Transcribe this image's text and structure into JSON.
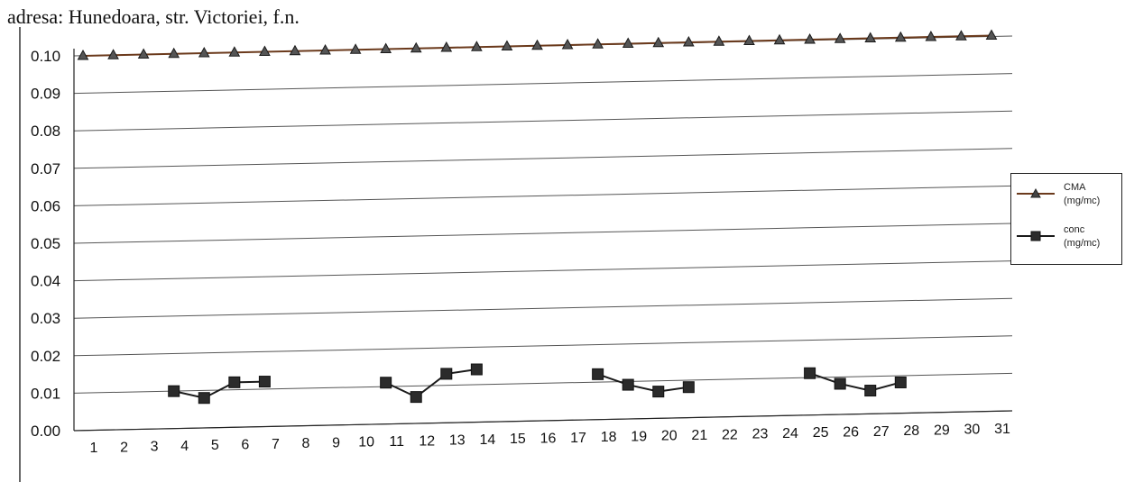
{
  "chart_data": {
    "type": "line",
    "title": "adresa: Hunedoara, str. Victoriei, f.n.",
    "xlabel": "",
    "ylabel": "",
    "categories": [
      "1",
      "2",
      "3",
      "4",
      "5",
      "6",
      "7",
      "8",
      "9",
      "10",
      "11",
      "12",
      "13",
      "14",
      "15",
      "16",
      "17",
      "18",
      "19",
      "20",
      "21",
      "22",
      "23",
      "24",
      "25",
      "26",
      "27",
      "28",
      "29",
      "30",
      "31"
    ],
    "ylim": [
      0,
      0.1
    ],
    "yticks": [
      "0.00",
      "0.01",
      "0.02",
      "0.03",
      "0.04",
      "0.05",
      "0.06",
      "0.07",
      "0.08",
      "0.09",
      "0.10"
    ],
    "grid": true,
    "legend_position": "right",
    "series": [
      {
        "name": "CMA (mg/mc)",
        "legend_lines": [
          "CMA",
          "(mg/mc)"
        ],
        "marker": "triangle",
        "color": "#6b3a1c",
        "values": [
          0.1,
          0.1,
          0.1,
          0.1,
          0.1,
          0.1,
          0.1,
          0.1,
          0.1,
          0.1,
          0.1,
          0.1,
          0.1,
          0.1,
          0.1,
          0.1,
          0.1,
          0.1,
          0.1,
          0.1,
          0.1,
          0.1,
          0.1,
          0.1,
          0.1,
          0.1,
          0.1,
          0.1,
          0.1,
          0.1,
          0.1
        ]
      },
      {
        "name": "conc (mg/mc)",
        "legend_lines": [
          "conc",
          "(mg/mc)"
        ],
        "marker": "square",
        "color": "#1a1a1a",
        "values": [
          null,
          null,
          null,
          0.01,
          0.008,
          0.012,
          0.012,
          null,
          null,
          null,
          0.011,
          0.007,
          0.013,
          0.014,
          null,
          null,
          null,
          0.012,
          0.009,
          0.007,
          0.008,
          null,
          null,
          null,
          0.011,
          0.008,
          0.006,
          0.008,
          null,
          null,
          null
        ]
      }
    ]
  }
}
